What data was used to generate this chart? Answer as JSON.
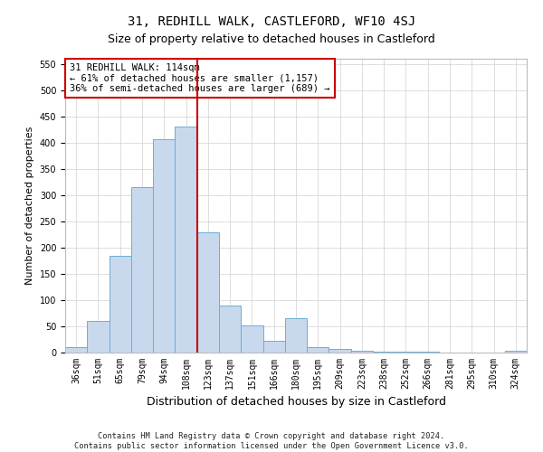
{
  "title": "31, REDHILL WALK, CASTLEFORD, WF10 4SJ",
  "subtitle": "Size of property relative to detached houses in Castleford",
  "xlabel": "Distribution of detached houses by size in Castleford",
  "ylabel": "Number of detached properties",
  "categories": [
    "36sqm",
    "51sqm",
    "65sqm",
    "79sqm",
    "94sqm",
    "108sqm",
    "123sqm",
    "137sqm",
    "151sqm",
    "166sqm",
    "180sqm",
    "195sqm",
    "209sqm",
    "223sqm",
    "238sqm",
    "252sqm",
    "266sqm",
    "281sqm",
    "295sqm",
    "310sqm",
    "324sqm"
  ],
  "values": [
    10,
    60,
    185,
    315,
    407,
    430,
    230,
    90,
    52,
    22,
    65,
    10,
    7,
    3,
    2,
    2,
    2,
    0,
    0,
    0,
    3
  ],
  "bar_color": "#c8d9ee",
  "bar_edge_color": "#6baed6",
  "bar_width": 1.0,
  "vline_x": 6.0,
  "vline_color": "#cc0000",
  "annotation_text": "31 REDHILL WALK: 114sqm\n← 61% of detached houses are smaller (1,157)\n36% of semi-detached houses are larger (689) →",
  "annotation_box_color": "#cc0000",
  "ylim": [
    0,
    560
  ],
  "yticks": [
    0,
    50,
    100,
    150,
    200,
    250,
    300,
    350,
    400,
    450,
    500,
    550
  ],
  "footer_line1": "Contains HM Land Registry data © Crown copyright and database right 2024.",
  "footer_line2": "Contains public sector information licensed under the Open Government Licence v3.0.",
  "bg_color": "#ffffff",
  "grid_color": "#d0d0d0",
  "title_fontsize": 10,
  "subtitle_fontsize": 9,
  "ylabel_fontsize": 8,
  "xlabel_fontsize": 9,
  "annotation_fontsize": 7.5,
  "tick_fontsize": 7
}
